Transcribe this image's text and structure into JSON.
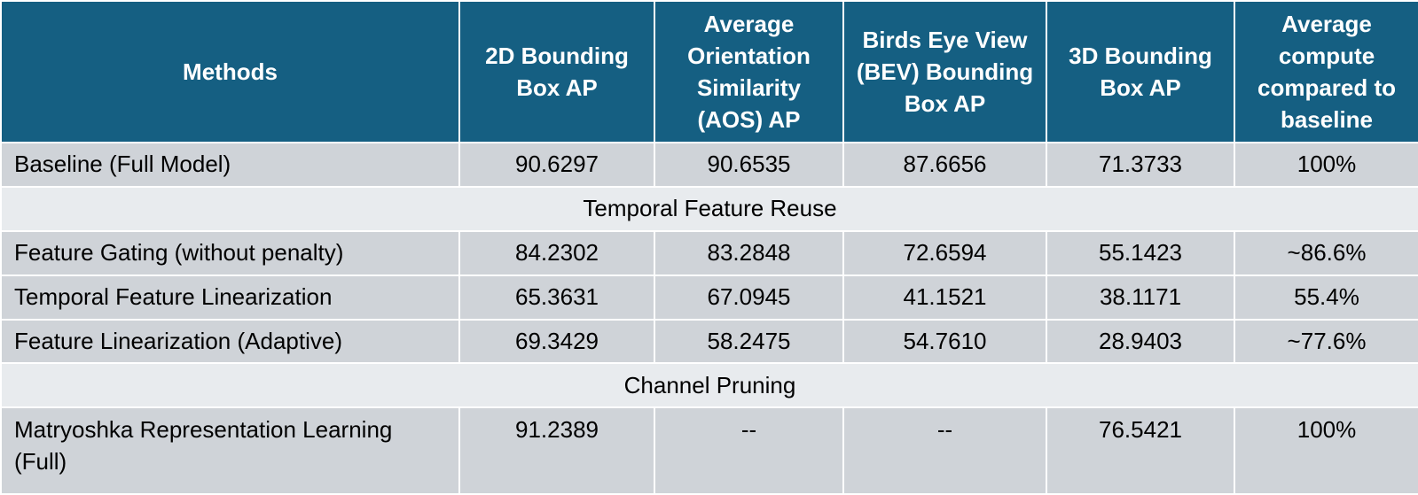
{
  "table": {
    "headers": [
      "Methods",
      "2D Bounding Box AP",
      "Average Orientation Similarity (AOS) AP",
      "Birds Eye View (BEV) Bounding Box AP",
      "3D Bounding Box AP",
      "Average compute compared to baseline"
    ],
    "rows": [
      {
        "method": "Baseline (Full Model)",
        "bbox2d": "90.6297",
        "aos": "90.6535",
        "bev": "87.6656",
        "bbox3d": "71.3733",
        "compute": "100%"
      },
      {
        "section": "Temporal Feature Reuse"
      },
      {
        "method": "Feature Gating (without penalty)",
        "bbox2d": "84.2302",
        "aos": "83.2848",
        "bev": "72.6594",
        "bbox3d": "55.1423",
        "compute": "~86.6%"
      },
      {
        "method": "Temporal Feature Linearization",
        "bbox2d": "65.3631",
        "aos": "67.0945",
        "bev": "41.1521",
        "bbox3d": "38.1171",
        "compute": "55.4%"
      },
      {
        "method": "Feature Linearization (Adaptive)",
        "bbox2d": "69.3429",
        "aos": "58.2475",
        "bev": "54.7610",
        "bbox3d": "28.9403",
        "compute": "~77.6%"
      },
      {
        "section": "Channel Pruning"
      },
      {
        "method": "Matryoshka Representation Learning (Full)",
        "bbox2d": "91.2389",
        "aos": "--",
        "bev": "--",
        "bbox3d": "76.5421",
        "compute": "100%"
      }
    ]
  }
}
